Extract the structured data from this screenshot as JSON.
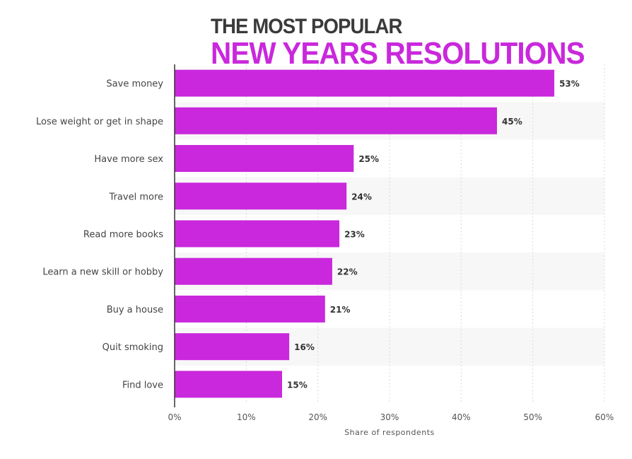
{
  "title": {
    "line1": "THE MOST POPULAR",
    "line2": "NEW YEARS RESOLUTIONS"
  },
  "colors": {
    "bar": "#c928dc",
    "title_accent": "#c928dc",
    "band": "#f7f7f7",
    "grid": "#d8d8d8"
  },
  "chart_data": {
    "type": "bar",
    "orientation": "horizontal",
    "categories": [
      "Save money",
      "Lose weight or get in shape",
      "Have more sex",
      "Travel more",
      "Read more books",
      "Learn a new skill or hobby",
      "Buy a house",
      "Quit smoking",
      "Find love"
    ],
    "values": [
      53,
      45,
      25,
      24,
      23,
      22,
      21,
      16,
      15
    ],
    "value_labels": [
      "53%",
      "45%",
      "25%",
      "24%",
      "23%",
      "22%",
      "21%",
      "16%",
      "15%"
    ],
    "xlabel": "Share of respondents",
    "xlim": [
      0,
      60
    ],
    "xticks": [
      0,
      10,
      20,
      30,
      40,
      50,
      60
    ],
    "xtick_labels": [
      "0%",
      "10%",
      "20%",
      "30%",
      "40%",
      "50%",
      "60%"
    ],
    "grid": true
  }
}
